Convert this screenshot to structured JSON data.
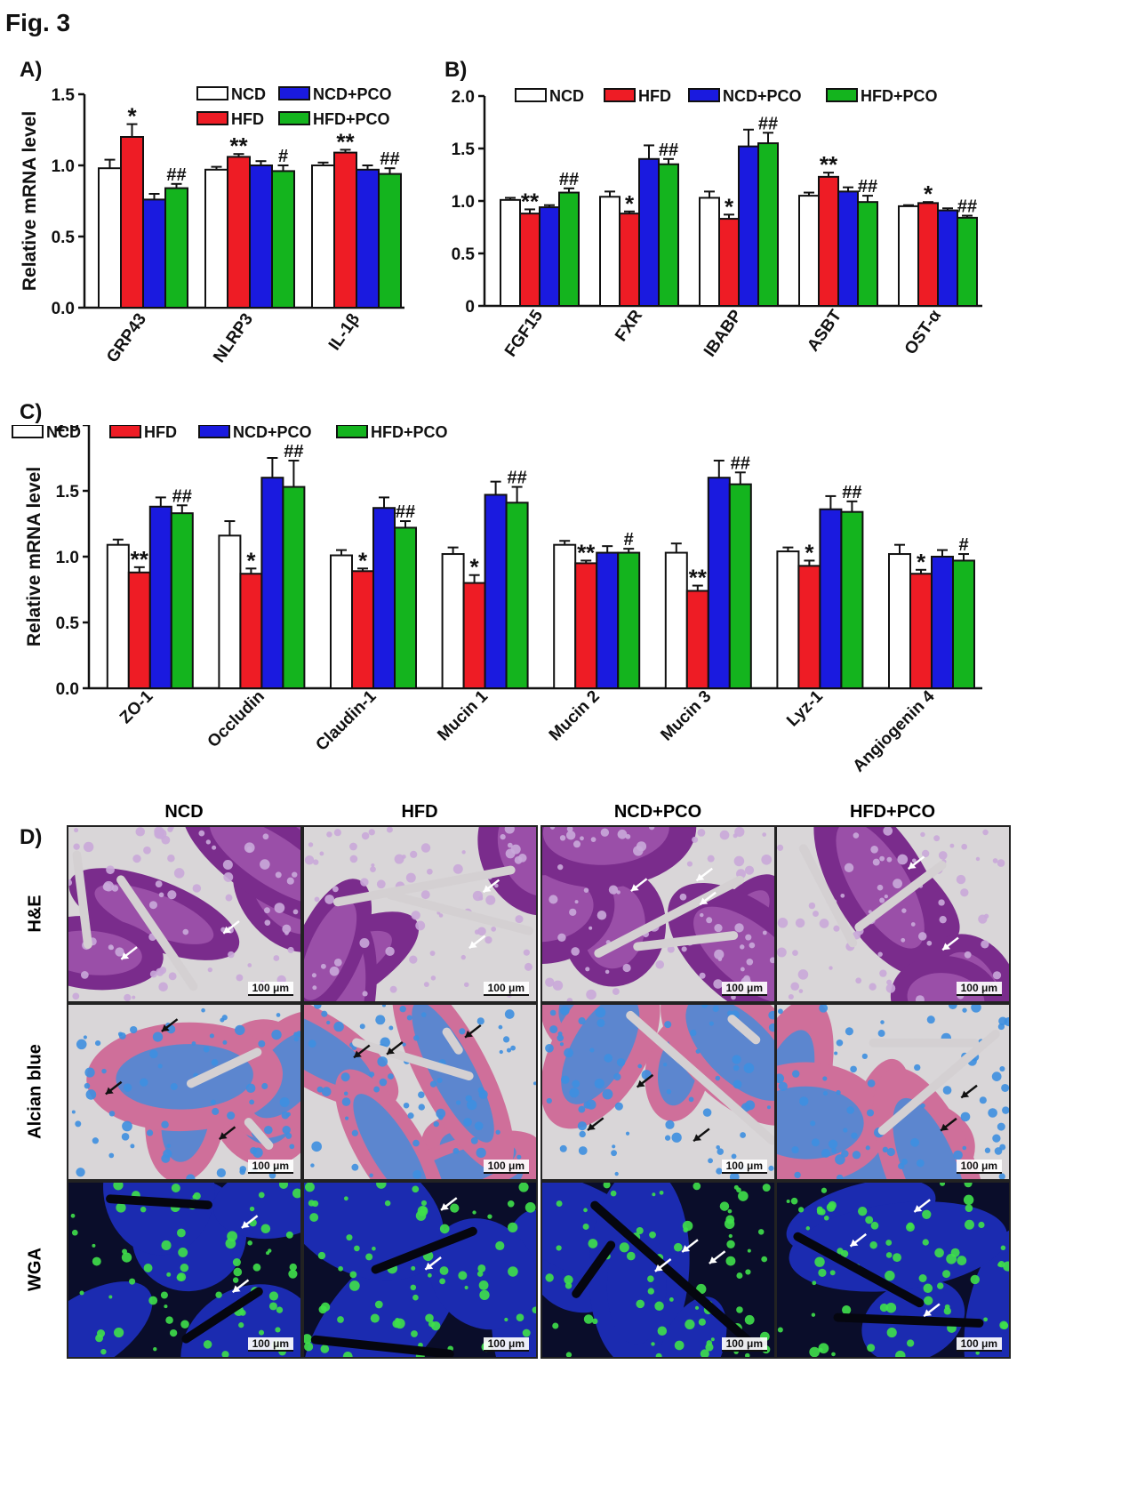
{
  "figure_title": "Fig. 3",
  "colors": {
    "NCD": "#ffffff",
    "HFD": "#ee1c25",
    "NCD+PCO": "#1a1adf",
    "HFD+PCO": "#14b41e"
  },
  "chart_data": [
    {
      "panel": "A)",
      "type": "bar",
      "ylabel": "Relative mRNA level",
      "ylim": [
        0,
        1.5
      ],
      "yticks": [
        "0.0",
        "0.5",
        "1.0",
        "1.5"
      ],
      "legend": [
        "NCD",
        "NCD+PCO",
        "HFD",
        "HFD+PCO"
      ],
      "legend_placement": "top-right",
      "categories": [
        "GRP43",
        "NLRP3",
        "IL-1β"
      ],
      "series": [
        {
          "name": "NCD",
          "values": [
            0.98,
            0.97,
            1.0
          ],
          "errors": [
            0.06,
            0.02,
            0.02
          ]
        },
        {
          "name": "HFD",
          "values": [
            1.2,
            1.06,
            1.09
          ],
          "errors": [
            0.09,
            0.02,
            0.02
          ]
        },
        {
          "name": "NCD+PCO",
          "values": [
            0.76,
            1.0,
            0.97
          ],
          "errors": [
            0.04,
            0.03,
            0.03
          ]
        },
        {
          "name": "HFD+PCO",
          "values": [
            0.84,
            0.96,
            0.94
          ],
          "errors": [
            0.03,
            0.04,
            0.04
          ]
        }
      ],
      "annotations": [
        {
          "category": 0,
          "series": 1,
          "text": "*"
        },
        {
          "category": 0,
          "series": 3,
          "text": "##"
        },
        {
          "category": 1,
          "series": 1,
          "text": "**"
        },
        {
          "category": 1,
          "series": 3,
          "text": "#"
        },
        {
          "category": 2,
          "series": 1,
          "text": "**"
        },
        {
          "category": 2,
          "series": 3,
          "text": "##"
        }
      ]
    },
    {
      "panel": "B)",
      "type": "bar",
      "ylabel": "Relative mRNA level",
      "ylim": [
        0,
        2.0
      ],
      "yticks": [
        "0",
        "0.5",
        "1.0",
        "1.5",
        "2.0"
      ],
      "legend": [
        "NCD",
        "HFD",
        "NCD+PCO",
        "HFD+PCO"
      ],
      "legend_placement": "top",
      "categories": [
        "FGF15",
        "FXR",
        "IBABP",
        "ASBT",
        "OST-α"
      ],
      "series": [
        {
          "name": "NCD",
          "values": [
            1.01,
            1.04,
            1.03,
            1.05,
            0.95
          ],
          "errors": [
            0.02,
            0.05,
            0.06,
            0.03,
            0.01
          ]
        },
        {
          "name": "HFD",
          "values": [
            0.88,
            0.88,
            0.83,
            1.23,
            0.98
          ],
          "errors": [
            0.04,
            0.02,
            0.04,
            0.04,
            0.01
          ]
        },
        {
          "name": "NCD+PCO",
          "values": [
            0.94,
            1.4,
            1.52,
            1.09,
            0.91
          ],
          "errors": [
            0.02,
            0.13,
            0.16,
            0.04,
            0.02
          ]
        },
        {
          "name": "HFD+PCO",
          "values": [
            1.08,
            1.35,
            1.55,
            0.99,
            0.84
          ],
          "errors": [
            0.04,
            0.05,
            0.1,
            0.06,
            0.02
          ]
        }
      ],
      "annotations": [
        {
          "category": 0,
          "series": 1,
          "text": "**"
        },
        {
          "category": 0,
          "series": 3,
          "text": "##"
        },
        {
          "category": 1,
          "series": 1,
          "text": "*"
        },
        {
          "category": 1,
          "series": 3,
          "text": "##"
        },
        {
          "category": 2,
          "series": 1,
          "text": "*"
        },
        {
          "category": 2,
          "series": 3,
          "text": "##"
        },
        {
          "category": 3,
          "series": 1,
          "text": "**"
        },
        {
          "category": 3,
          "series": 3,
          "text": "##"
        },
        {
          "category": 4,
          "series": 1,
          "text": "*"
        },
        {
          "category": 4,
          "series": 3,
          "text": "##"
        }
      ]
    },
    {
      "panel": "C)",
      "type": "bar",
      "ylabel": "Relative mRNA level",
      "ylim": [
        0,
        2.0
      ],
      "yticks": [
        "0.0",
        "0.5",
        "1.0",
        "1.5",
        "2.0"
      ],
      "legend": [
        "NCD",
        "HFD",
        "NCD+PCO",
        "HFD+PCO"
      ],
      "legend_placement": "top-left",
      "categories": [
        "ZO-1",
        "Occludin",
        "Claudin-1",
        "Mucin 1",
        "Mucin 2",
        "Mucin 3",
        "Lyz-1",
        "Angiogenin 4"
      ],
      "series": [
        {
          "name": "NCD",
          "values": [
            1.09,
            1.16,
            1.01,
            1.02,
            1.09,
            1.03,
            1.04,
            1.02
          ],
          "errors": [
            0.04,
            0.11,
            0.04,
            0.05,
            0.03,
            0.07,
            0.03,
            0.07
          ]
        },
        {
          "name": "HFD",
          "values": [
            0.88,
            0.87,
            0.89,
            0.8,
            0.95,
            0.74,
            0.93,
            0.87
          ],
          "errors": [
            0.04,
            0.04,
            0.02,
            0.06,
            0.02,
            0.04,
            0.04,
            0.03
          ]
        },
        {
          "name": "NCD+PCO",
          "values": [
            1.38,
            1.6,
            1.37,
            1.47,
            1.03,
            1.6,
            1.36,
            1.0
          ],
          "errors": [
            0.07,
            0.15,
            0.08,
            0.1,
            0.05,
            0.13,
            0.1,
            0.05
          ]
        },
        {
          "name": "HFD+PCO",
          "values": [
            1.33,
            1.53,
            1.22,
            1.41,
            1.03,
            1.55,
            1.34,
            0.97
          ],
          "errors": [
            0.06,
            0.2,
            0.05,
            0.12,
            0.03,
            0.09,
            0.08,
            0.05
          ]
        }
      ],
      "annotations": [
        {
          "category": 0,
          "series": 1,
          "text": "**"
        },
        {
          "category": 0,
          "series": 3,
          "text": "##"
        },
        {
          "category": 1,
          "series": 1,
          "text": "*"
        },
        {
          "category": 1,
          "series": 3,
          "text": "##"
        },
        {
          "category": 2,
          "series": 1,
          "text": "*"
        },
        {
          "category": 2,
          "series": 3,
          "text": "##"
        },
        {
          "category": 3,
          "series": 1,
          "text": "*"
        },
        {
          "category": 3,
          "series": 3,
          "text": "##"
        },
        {
          "category": 4,
          "series": 1,
          "text": "**"
        },
        {
          "category": 4,
          "series": 3,
          "text": "#"
        },
        {
          "category": 5,
          "series": 1,
          "text": "**"
        },
        {
          "category": 5,
          "series": 3,
          "text": "##"
        },
        {
          "category": 6,
          "series": 1,
          "text": "*"
        },
        {
          "category": 6,
          "series": 3,
          "text": "##"
        },
        {
          "category": 7,
          "series": 1,
          "text": "*"
        },
        {
          "category": 7,
          "series": 3,
          "text": "#"
        }
      ]
    }
  ],
  "micrographs": {
    "panel": "D)",
    "columns": [
      "NCD",
      "HFD",
      "NCD+PCO",
      "HFD+PCO"
    ],
    "rows": [
      {
        "label": "H&E",
        "stain": "he"
      },
      {
        "label": "Alcian blue",
        "stain": "alcian"
      },
      {
        "label": "WGA",
        "stain": "wga"
      }
    ],
    "scale_bar": "100 μm"
  }
}
